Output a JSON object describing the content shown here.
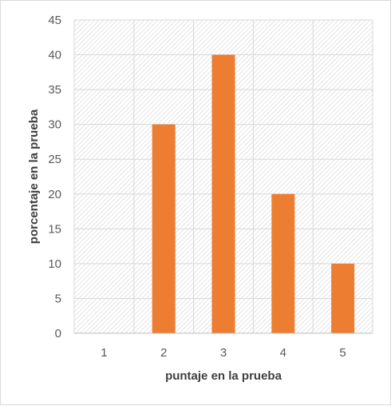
{
  "chart_data": {
    "type": "bar",
    "title": "",
    "xlabel": "puntaje en la prueba",
    "ylabel": "porcentaje en la prueba",
    "categories": [
      "1",
      "2",
      "3",
      "4",
      "5"
    ],
    "values": [
      0,
      30,
      40,
      20,
      10
    ],
    "ylim": [
      0,
      45
    ],
    "yticks": [
      0,
      5,
      10,
      15,
      20,
      25,
      30,
      35,
      40,
      45
    ],
    "grid": true,
    "legend": "none",
    "colors": {
      "bar": "#ED7D31",
      "gridline": "#D9D9D9",
      "plot_pattern": "#D4D4D4"
    }
  }
}
